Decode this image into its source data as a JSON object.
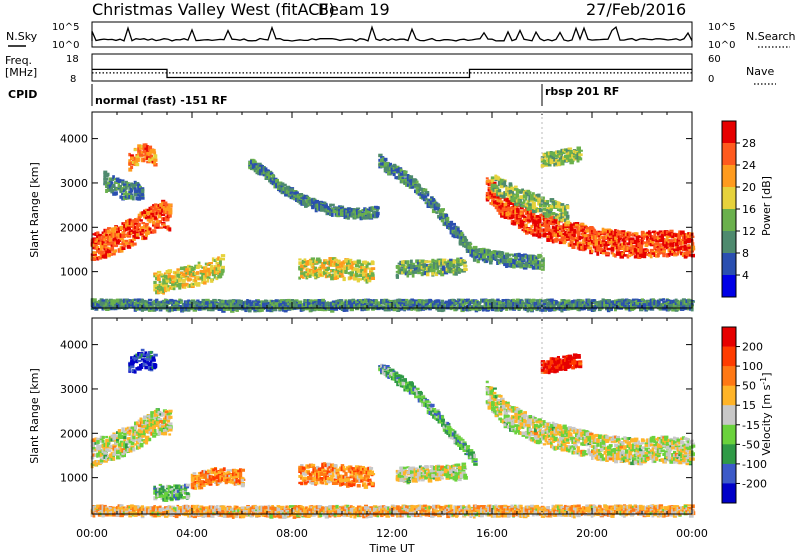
{
  "header": {
    "title": "Christmas Valley West (fitACF)",
    "beam": "Beam 19",
    "date": "27/Feb/2016"
  },
  "top_panels": {
    "nsky_label": "N.Sky",
    "nsky_ticks": [
      "10^5",
      "10^0"
    ],
    "nsearch_label": "N.Search",
    "nsearch_ticks": [
      "10^5",
      "10^0"
    ],
    "freq_label_1": "Freq.",
    "freq_label_2": "[MHz]",
    "freq_ticks": [
      "18",
      "8"
    ],
    "nave_label": "Nave",
    "nave_ticks": [
      "60",
      "0"
    ],
    "cpid_label": "CPID",
    "cpid_segments": [
      {
        "label": "normal (fast) -151 RF",
        "start_hour": 0
      },
      {
        "label": "rbsp 201 RF",
        "start_hour": 18
      }
    ],
    "freq_steps": [
      {
        "start": 0,
        "end": 3,
        "value": 12.3
      },
      {
        "start": 3,
        "end": 15.1,
        "value": 9.3
      },
      {
        "start": 15.1,
        "end": 24,
        "value": 12.3
      }
    ],
    "nave_level": 18
  },
  "chart_data": [
    {
      "type": "heatmap",
      "name": "power",
      "xlabel": "",
      "ylabel": "Slant Range [km]",
      "yticks": [
        1000,
        2000,
        3000,
        4000
      ],
      "ylim": [
        180,
        4600
      ],
      "colorbar_label": "Power [dB]",
      "colorbar_ticks": [
        4,
        8,
        12,
        16,
        20,
        24,
        28
      ],
      "colorbar_colors": [
        "#0000e6",
        "#2a4fb0",
        "#4e8a6e",
        "#6ab04c",
        "#e6d23c",
        "#ff9b1e",
        "#ff5a1e",
        "#e60000"
      ],
      "echo_bands": [
        {
          "x": [
            0.0,
            0.8,
            1.6,
            2.3,
            2.8,
            3.1
          ],
          "y": [
            1550,
            1700,
            1900,
            2150,
            2300,
            2250
          ],
          "w": 300,
          "level": 0.8
        },
        {
          "x": [
            2.5,
            3.0,
            3.5,
            4.0,
            4.6,
            5.2
          ],
          "y": [
            750,
            780,
            820,
            900,
            1000,
            1150
          ],
          "w": 250,
          "level": 0.55
        },
        {
          "x": [
            8.3,
            9.2,
            10.2,
            11.2
          ],
          "y": [
            1050,
            1100,
            1050,
            1000
          ],
          "w": 220,
          "level": 0.55
        },
        {
          "x": [
            12.2,
            13.2,
            14.2,
            14.9
          ],
          "y": [
            1050,
            1100,
            1100,
            1150
          ],
          "w": 160,
          "level": 0.4
        },
        {
          "x": [
            15.8,
            16.6,
            17.6,
            18.8,
            20.2,
            21.6,
            23.0,
            24.0
          ],
          "y": [
            2900,
            2400,
            2100,
            1900,
            1700,
            1600,
            1650,
            1600
          ],
          "w": 280,
          "level": 0.85
        },
        {
          "x": [
            16.0,
            17.0,
            18.0,
            19.0
          ],
          "y": [
            3000,
            2700,
            2500,
            2300
          ],
          "w": 200,
          "level": 0.45
        },
        {
          "x": [
            1.5,
            2.0,
            2.5
          ],
          "y": [
            3500,
            3700,
            3600
          ],
          "w": 200,
          "level": 0.75
        },
        {
          "x": [
            18.0,
            18.8,
            19.5
          ],
          "y": [
            3500,
            3600,
            3650
          ],
          "w": 150,
          "level": 0.45
        },
        {
          "x": [
            0.5,
            1.2,
            2.0
          ],
          "y": [
            3050,
            2850,
            2850
          ],
          "w": 200,
          "level": 0.3
        },
        {
          "x": [
            6.3,
            7.0,
            7.5,
            8.5,
            9.5,
            10.5,
            11.4
          ],
          "y": [
            3450,
            3200,
            2900,
            2600,
            2400,
            2300,
            2350
          ],
          "w": 110,
          "level": 0.3
        },
        {
          "x": [
            11.5,
            12.8,
            13.8,
            14.6,
            15.3,
            16.5,
            18.0
          ],
          "y": [
            3500,
            3000,
            2400,
            1850,
            1400,
            1280,
            1220
          ],
          "w": 140,
          "level": 0.3
        },
        {
          "x": [
            0,
            6,
            12,
            18,
            24
          ],
          "y": [
            260,
            240,
            250,
            250,
            260
          ],
          "w": 110,
          "level": 0.3
        }
      ]
    },
    {
      "type": "heatmap",
      "name": "velocity",
      "xlabel": "Time UT",
      "ylabel": "Slant Range [km]",
      "xticks": [
        "00:00",
        "04:00",
        "08:00",
        "12:00",
        "16:00",
        "20:00",
        "00:00"
      ],
      "yticks": [
        1000,
        2000,
        3000,
        4000
      ],
      "ylim": [
        180,
        4600
      ],
      "colorbar_label": "Velocity [m s^-1]",
      "colorbar_ticks": [
        "200",
        "100",
        "50",
        "15",
        "-15",
        "-50",
        "-100",
        "-200"
      ],
      "colorbar_colors": [
        "#0000c8",
        "#3c5ac8",
        "#2f9a46",
        "#6ad23c",
        "#c8c8c8",
        "#ffb428",
        "#ff7814",
        "#ff3c00",
        "#e60000"
      ],
      "echo_bands": [
        {
          "x": [
            0.0,
            0.8,
            1.6,
            2.3,
            2.8,
            3.1
          ],
          "y": [
            1550,
            1700,
            1900,
            2150,
            2300,
            2250
          ],
          "w": 300,
          "level": 0.5
        },
        {
          "x": [
            4.0,
            4.6,
            5.2,
            6.0
          ],
          "y": [
            900,
            1000,
            1050,
            1000
          ],
          "w": 180,
          "level": 0.7
        },
        {
          "x": [
            2.5,
            3.0,
            3.8
          ],
          "y": [
            700,
            650,
            680
          ],
          "w": 160,
          "level": 0.35
        },
        {
          "x": [
            8.3,
            9.2,
            10.2,
            11.2
          ],
          "y": [
            1050,
            1100,
            1050,
            1000
          ],
          "w": 220,
          "level": 0.7
        },
        {
          "x": [
            12.2,
            13.2,
            14.2,
            14.9
          ],
          "y": [
            1050,
            1100,
            1100,
            1150
          ],
          "w": 160,
          "level": 0.5
        },
        {
          "x": [
            15.8,
            16.6,
            17.6,
            18.8,
            20.2,
            21.6,
            23.0,
            24.0
          ],
          "y": [
            2900,
            2400,
            2100,
            1900,
            1700,
            1600,
            1650,
            1600
          ],
          "w": 280,
          "level": 0.5
        },
        {
          "x": [
            18.0,
            18.8,
            19.5
          ],
          "y": [
            3500,
            3600,
            3650
          ],
          "w": 150,
          "level": 0.95
        },
        {
          "x": [
            1.5,
            2.0,
            2.5
          ],
          "y": [
            3500,
            3700,
            3600
          ],
          "w": 200,
          "level": 0.1
        },
        {
          "x": [
            11.5,
            12.8,
            13.8,
            14.6,
            15.3
          ],
          "y": [
            3500,
            3000,
            2400,
            1850,
            1400
          ],
          "w": 120,
          "level": 0.35
        },
        {
          "x": [
            0,
            6,
            12,
            18,
            24
          ],
          "y": [
            260,
            240,
            250,
            250,
            260
          ],
          "w": 110,
          "level": 0.6
        }
      ]
    }
  ]
}
